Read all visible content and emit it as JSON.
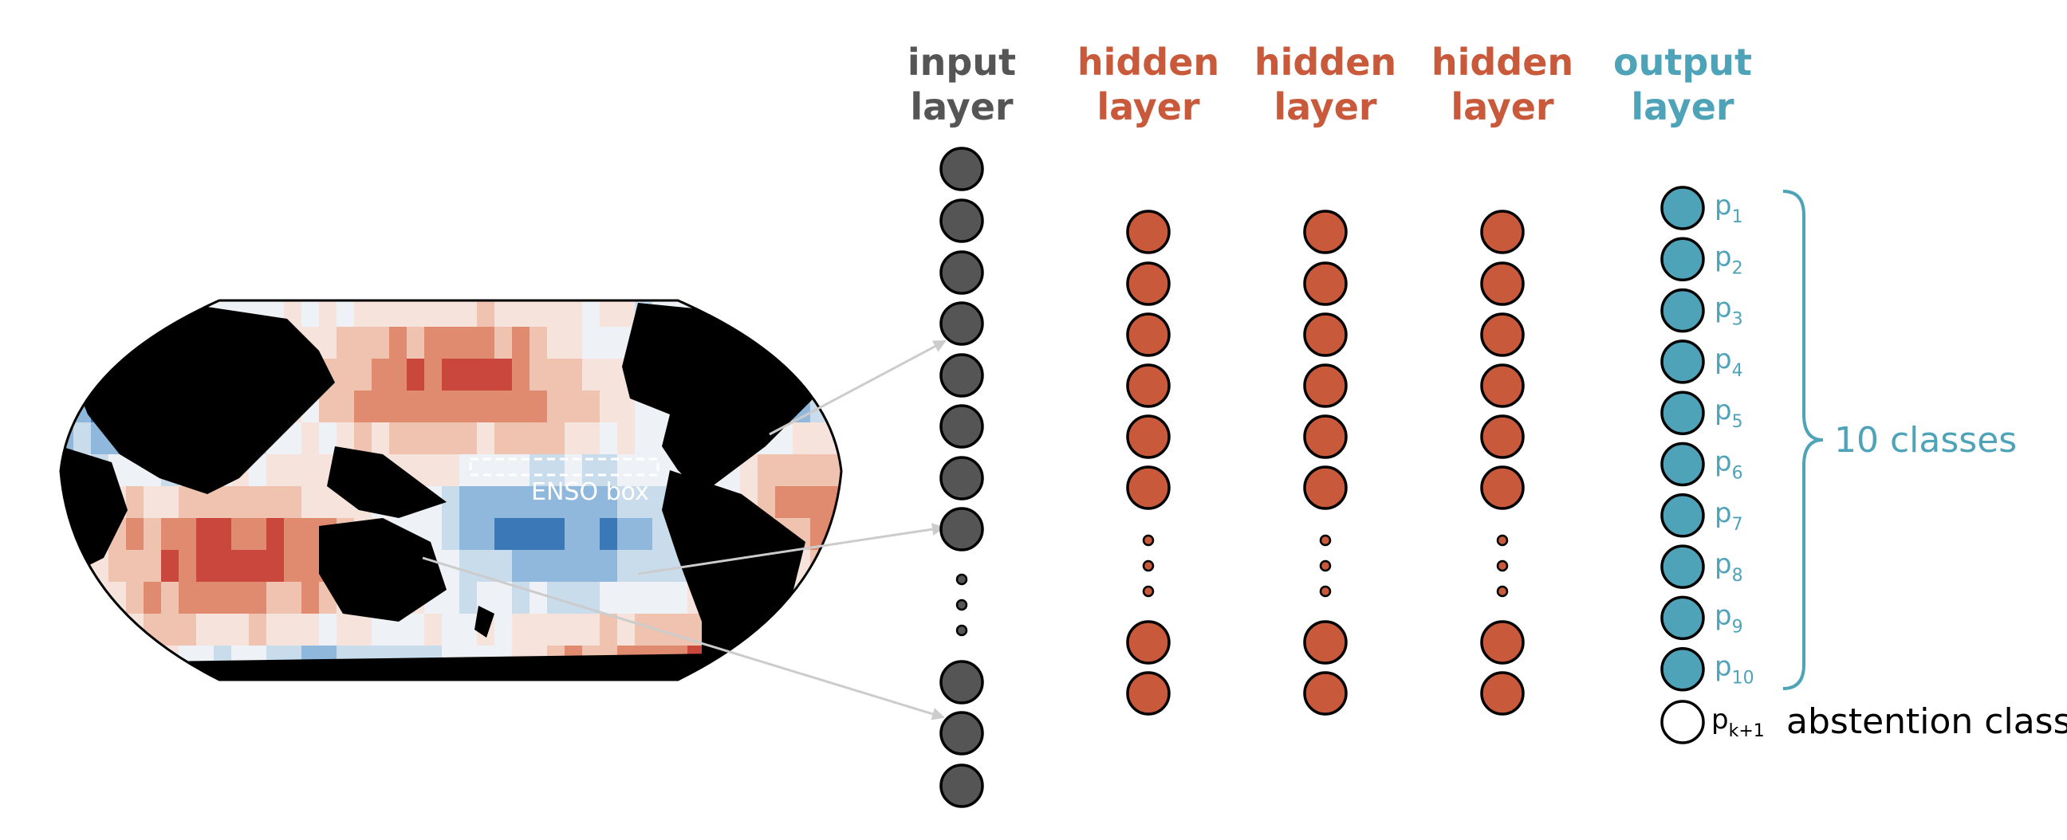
{
  "colors": {
    "input": "#555555",
    "hidden": "#c8593a",
    "output": "#4fa3b8",
    "abstention": "#ffffff",
    "warm": "#c9473d",
    "cool": "#3a78b8",
    "land": "#000000",
    "arrow": "#cccccc"
  },
  "map": {
    "enso_label": "ENSO box"
  },
  "layers": {
    "input": {
      "line1": "input",
      "line2": "layer",
      "dots": 3
    },
    "hidden": [
      {
        "line1": "hidden",
        "line2": "layer"
      },
      {
        "line1": "hidden",
        "line2": "layer"
      },
      {
        "line1": "hidden",
        "line2": "layer"
      }
    ],
    "output": {
      "line1": "output",
      "line2": "layer",
      "probabilities": [
        {
          "base": "p",
          "sub": "1"
        },
        {
          "base": "p",
          "sub": "2"
        },
        {
          "base": "p",
          "sub": "3"
        },
        {
          "base": "p",
          "sub": "4"
        },
        {
          "base": "p",
          "sub": "5"
        },
        {
          "base": "p",
          "sub": "6"
        },
        {
          "base": "p",
          "sub": "7"
        },
        {
          "base": "p",
          "sub": "8"
        },
        {
          "base": "p",
          "sub": "9"
        },
        {
          "base": "p",
          "sub": "10"
        }
      ],
      "brace_label": "10 classes",
      "abstention": {
        "base": "p",
        "sub": "k+1",
        "label": "abstention class"
      }
    }
  }
}
